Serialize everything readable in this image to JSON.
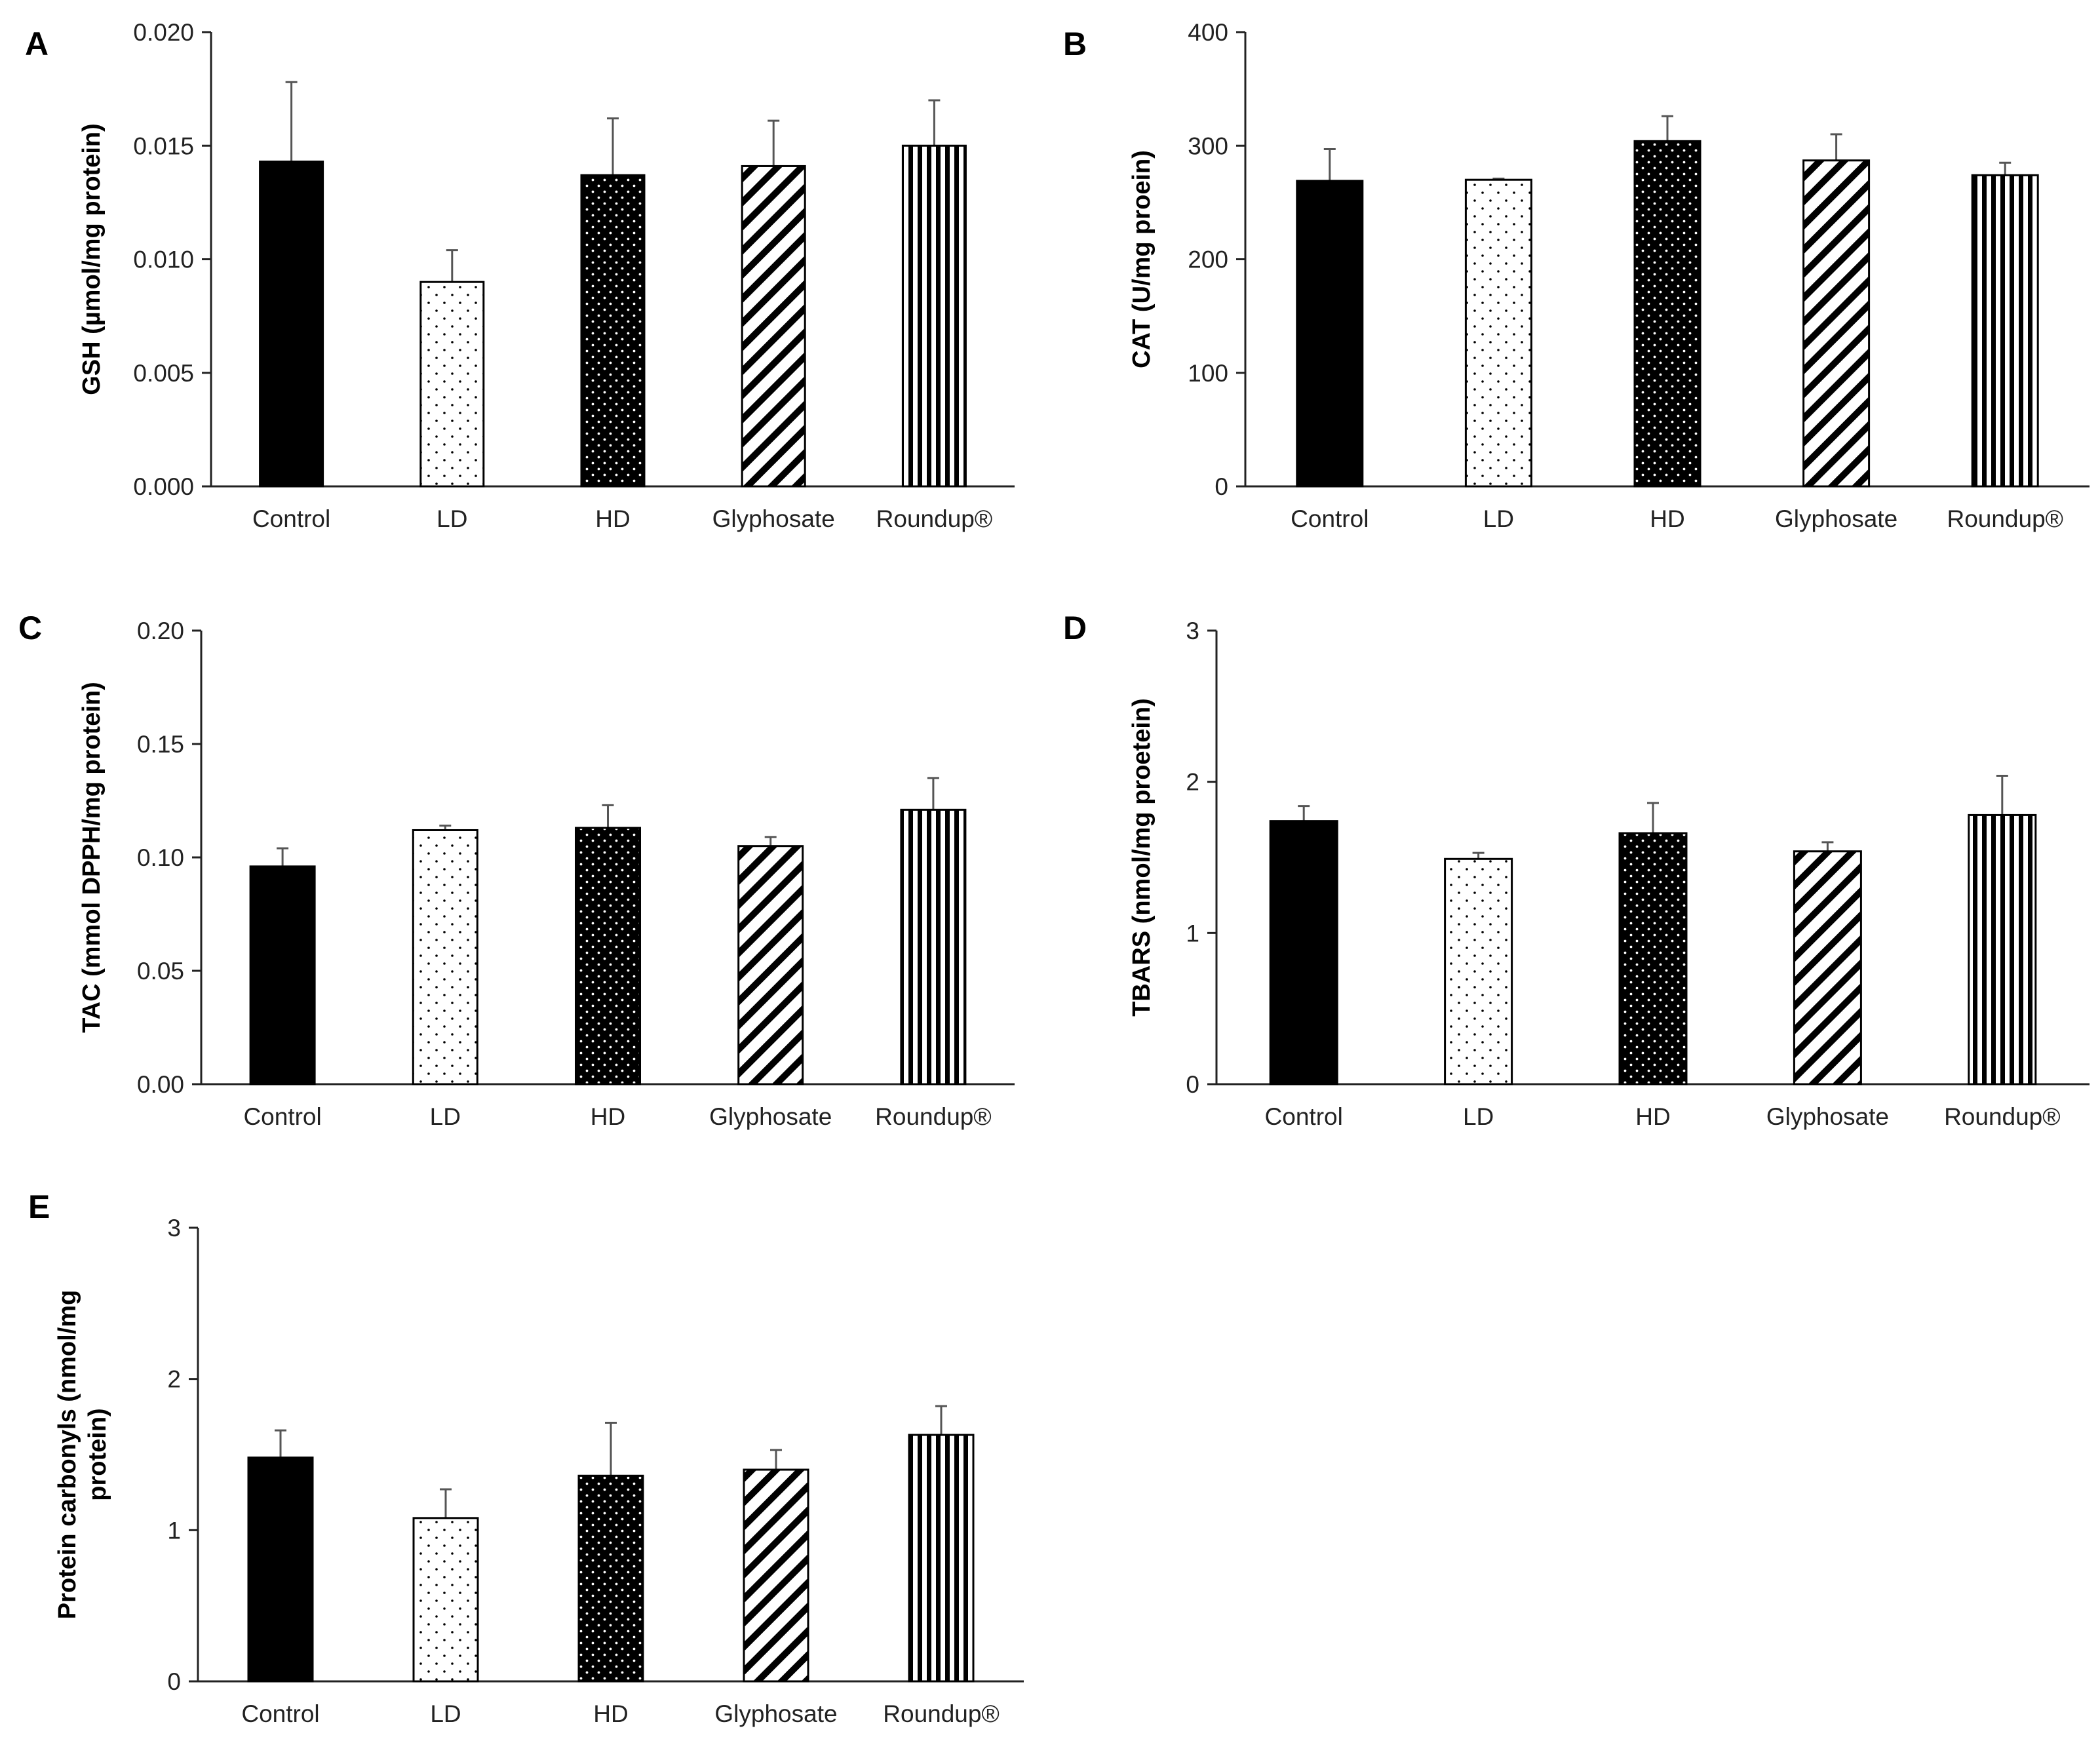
{
  "figure": {
    "categories": [
      "Control",
      "LD",
      "HD",
      "Glyphosate",
      "Roundup®"
    ],
    "patterns": [
      "solid-black",
      "sparse-dots",
      "dense-dots-on-black",
      "diagonal-stripes",
      "vertical-stripes"
    ]
  },
  "chart_data": [
    {
      "panel": "A",
      "type": "bar",
      "ylabel": [
        "GSH (µmol/mg protein)"
      ],
      "ylim": [
        0,
        0.02
      ],
      "yticks": [
        "0.000",
        "0.005",
        "0.010",
        "0.015",
        "0.020"
      ],
      "categories": [
        "Control",
        "LD",
        "HD",
        "Glyphosate",
        "Roundup®"
      ],
      "values": [
        0.0143,
        0.009,
        0.0137,
        0.0141,
        0.015
      ],
      "errors": [
        0.0035,
        0.0014,
        0.0025,
        0.002,
        0.002
      ]
    },
    {
      "panel": "B",
      "type": "bar",
      "ylabel": [
        "CAT (U/mg proein)"
      ],
      "ylim": [
        0,
        400
      ],
      "yticks": [
        "0",
        "100",
        "200",
        "300",
        "400"
      ],
      "categories": [
        "Control",
        "LD",
        "HD",
        "Glyphosate",
        "Roundup®"
      ],
      "values": [
        269,
        270,
        304,
        287,
        274
      ],
      "errors": [
        28,
        1,
        22,
        23,
        11
      ]
    },
    {
      "panel": "C",
      "type": "bar",
      "ylabel": [
        "TAC (mmol DPPH/mg protein)"
      ],
      "ylim": [
        0,
        0.2
      ],
      "yticks": [
        "0.00",
        "0.05",
        "0.10",
        "0.15",
        "0.20"
      ],
      "categories": [
        "Control",
        "LD",
        "HD",
        "Glyphosate",
        "Roundup®"
      ],
      "values": [
        0.096,
        0.112,
        0.113,
        0.105,
        0.121
      ],
      "errors": [
        0.008,
        0.002,
        0.01,
        0.004,
        0.014
      ]
    },
    {
      "panel": "D",
      "type": "bar",
      "ylabel": [
        "TBARS (nmol/mg proetein)"
      ],
      "ylim": [
        0,
        3
      ],
      "yticks": [
        "0",
        "1",
        "2",
        "3"
      ],
      "categories": [
        "Control",
        "LD",
        "HD",
        "Glyphosate",
        "Roundup®"
      ],
      "values": [
        1.74,
        1.49,
        1.66,
        1.54,
        1.78
      ],
      "errors": [
        0.1,
        0.04,
        0.2,
        0.06,
        0.26
      ]
    },
    {
      "panel": "E",
      "type": "bar",
      "ylabel": [
        "Protein carbonyls (nmol/mg",
        "protein)"
      ],
      "ylim": [
        0,
        3
      ],
      "yticks": [
        "0",
        "1",
        "2",
        "3"
      ],
      "categories": [
        "Control",
        "LD",
        "HD",
        "Glyphosate",
        "Roundup®"
      ],
      "values": [
        1.48,
        1.08,
        1.36,
        1.4,
        1.63
      ],
      "errors": [
        0.18,
        0.19,
        0.35,
        0.13,
        0.19
      ]
    }
  ]
}
